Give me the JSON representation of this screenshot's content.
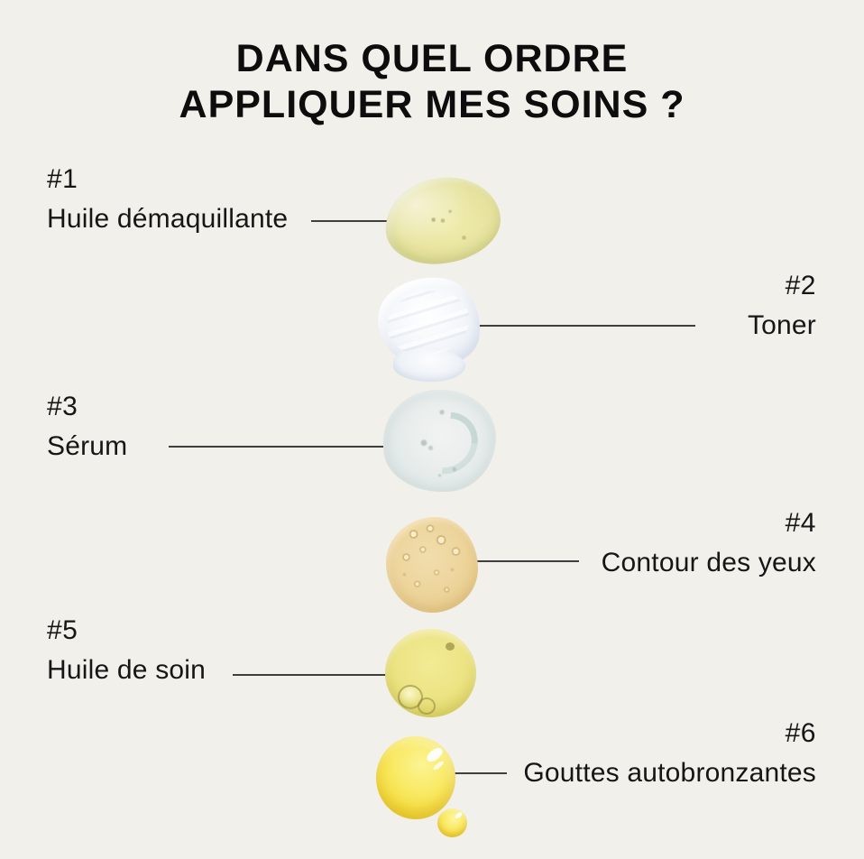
{
  "title": {
    "line1": "DANS QUEL ORDRE",
    "line2": "APPLIQUER MES SOINS ?"
  },
  "steps": [
    {
      "number": "#1",
      "label": "Huile démaquillante",
      "side": "left",
      "swatch": "cleansing-oil-blob",
      "swatch_color": "#e7e39e"
    },
    {
      "number": "#2",
      "label": "Toner",
      "side": "right",
      "swatch": "toner-smear",
      "swatch_color": "#eef2f7"
    },
    {
      "number": "#3",
      "label": "Sérum",
      "side": "left",
      "swatch": "serum-gel-blob",
      "swatch_color": "#e3eae9"
    },
    {
      "number": "#4",
      "label": "Contour des yeux",
      "side": "right",
      "swatch": "eye-contour-blob",
      "swatch_color": "#e8cc8d"
    },
    {
      "number": "#5",
      "label": "Huile de soin",
      "side": "left",
      "swatch": "face-oil-drop",
      "swatch_color": "#ede486"
    },
    {
      "number": "#6",
      "label": "Gouttes autobronzantes",
      "side": "right",
      "swatch": "self-tan-drop",
      "swatch_color": "#f6de42"
    }
  ],
  "style": {
    "background_color": "#f2f0ea",
    "text_color": "#161616",
    "connector_color": "#3f3f3f"
  }
}
